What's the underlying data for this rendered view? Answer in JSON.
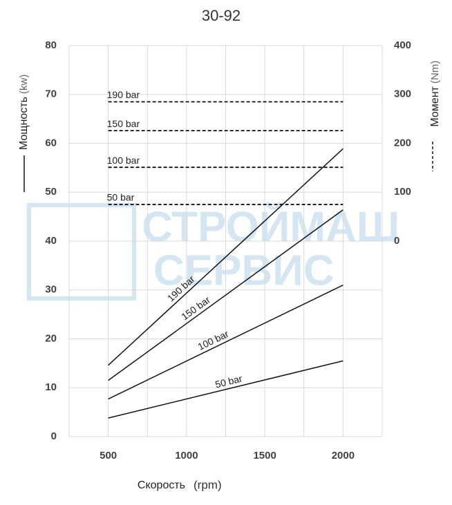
{
  "chart_data": {
    "type": "line",
    "title": "30-92",
    "x_label": "Скорость",
    "x_unit": "(rpm)",
    "y_label": "Мощность",
    "y_unit": "(kw)",
    "y2_label": "Момент",
    "y2_unit": "(Nm)",
    "watermark": [
      "СТРОЙМАШ",
      "СЕРВИС"
    ],
    "xlim": [
      250,
      2250
    ],
    "xticks": [
      500,
      1000,
      1500,
      2000
    ],
    "x_grid": [
      250,
      500,
      750,
      1000,
      1250,
      1500,
      1750,
      2000,
      2250
    ],
    "ylim": [
      0,
      80
    ],
    "yticks": [
      0,
      10,
      20,
      30,
      40,
      50,
      60,
      70,
      80
    ],
    "y2lim": [
      -400,
      400
    ],
    "y2ticks": [
      0,
      100,
      200,
      300,
      400
    ],
    "grid": true,
    "x": [
      500,
      2000
    ],
    "series": [
      {
        "name": "190 bar",
        "color": "#111111",
        "style": "solid",
        "values": [
          14.6,
          58.9
        ]
      },
      {
        "name": "150 bar",
        "color": "#111111",
        "style": "solid",
        "values": [
          11.5,
          46.4
        ]
      },
      {
        "name": "100 bar",
        "color": "#111111",
        "style": "solid",
        "values": [
          7.7,
          31.0
        ]
      },
      {
        "name": "50 bar",
        "color": "#111111",
        "style": "solid",
        "values": [
          3.8,
          15.5
        ]
      },
      {
        "name": "190 bar",
        "color": "#111111",
        "style": "dashed",
        "axis": "y2",
        "values": [
          285,
          285
        ]
      },
      {
        "name": "150 bar",
        "color": "#111111",
        "style": "dashed",
        "axis": "y2",
        "values": [
          226,
          226
        ]
      },
      {
        "name": "100 bar",
        "color": "#111111",
        "style": "dashed",
        "axis": "y2",
        "values": [
          151,
          151
        ]
      },
      {
        "name": "50 bar",
        "color": "#111111",
        "style": "dashed",
        "axis": "y2",
        "values": [
          75,
          75
        ]
      }
    ]
  }
}
